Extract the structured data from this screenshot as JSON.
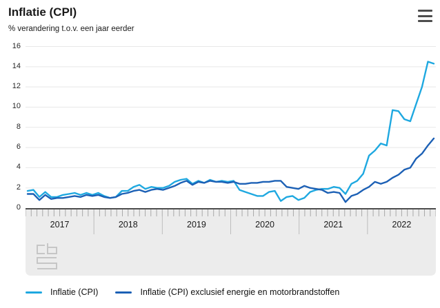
{
  "header": {
    "title": "Inflatie (CPI)",
    "subtitle": "% verandering t.o.v. een jaar eerder"
  },
  "menu": {
    "icon": "hamburger-menu-icon"
  },
  "branding": {
    "logo": "cbs-logo"
  },
  "colors": {
    "background": "#ffffff",
    "gridline": "#e8e8e8",
    "band": "#ececec",
    "axis_line": "#4d4d4d",
    "month_tick": "#a8a8a8",
    "year_separator": "#bdbdbd",
    "text": "#1a1a1a",
    "logo": "#c6c6c6",
    "menu_icon": "#4d4d4d"
  },
  "chart_data": {
    "type": "line",
    "title": "Inflatie (CPI)",
    "subtitle": "% verandering t.o.v. een jaar eerder",
    "x_unit": "month",
    "x_start": "2017-01",
    "x_end": "2022-10",
    "frequency": "monthly",
    "year_labels": [
      "2017",
      "2018",
      "2019",
      "2020",
      "2021",
      "2022"
    ],
    "yticks": [
      0,
      2,
      4,
      6,
      8,
      10,
      12,
      14,
      16
    ],
    "ylim": [
      0,
      16
    ],
    "grid": true,
    "legend_position": "bottom",
    "series": [
      {
        "name": "Inflatie (CPI)",
        "color": "#1EA8E0",
        "values": [
          1.7,
          1.8,
          1.1,
          1.6,
          1.1,
          1.1,
          1.3,
          1.4,
          1.5,
          1.3,
          1.5,
          1.3,
          1.5,
          1.2,
          1.0,
          1.1,
          1.7,
          1.7,
          2.1,
          2.3,
          1.9,
          2.1,
          2.0,
          2.0,
          2.2,
          2.6,
          2.8,
          2.9,
          2.4,
          2.7,
          2.5,
          2.8,
          2.6,
          2.7,
          2.6,
          2.7,
          1.8,
          1.6,
          1.4,
          1.2,
          1.2,
          1.6,
          1.7,
          0.7,
          1.1,
          1.2,
          0.8,
          1.0,
          1.6,
          1.8,
          1.9,
          1.9,
          2.1,
          2.0,
          1.4,
          2.4,
          2.7,
          3.4,
          5.2,
          5.7,
          6.4,
          6.2,
          9.7,
          9.6,
          8.8,
          8.6,
          10.3,
          12.0,
          14.5,
          14.3
        ]
      },
      {
        "name": "Inflatie (CPI) exclusief energie en motorbrandstoffen",
        "color": "#1C60B5",
        "values": [
          1.4,
          1.4,
          0.8,
          1.3,
          0.9,
          1.0,
          1.0,
          1.1,
          1.2,
          1.1,
          1.3,
          1.2,
          1.3,
          1.1,
          1.0,
          1.1,
          1.4,
          1.5,
          1.7,
          1.8,
          1.6,
          1.8,
          1.9,
          1.8,
          2.0,
          2.2,
          2.5,
          2.7,
          2.3,
          2.6,
          2.5,
          2.7,
          2.6,
          2.6,
          2.5,
          2.6,
          2.4,
          2.4,
          2.5,
          2.5,
          2.6,
          2.6,
          2.7,
          2.7,
          2.1,
          2.0,
          1.9,
          2.2,
          2.0,
          1.9,
          1.8,
          1.5,
          1.6,
          1.5,
          0.6,
          1.2,
          1.4,
          1.8,
          2.1,
          2.6,
          2.4,
          2.6,
          3.0,
          3.3,
          3.8,
          4.0,
          4.9,
          5.4,
          6.2,
          6.9
        ]
      }
    ]
  }
}
